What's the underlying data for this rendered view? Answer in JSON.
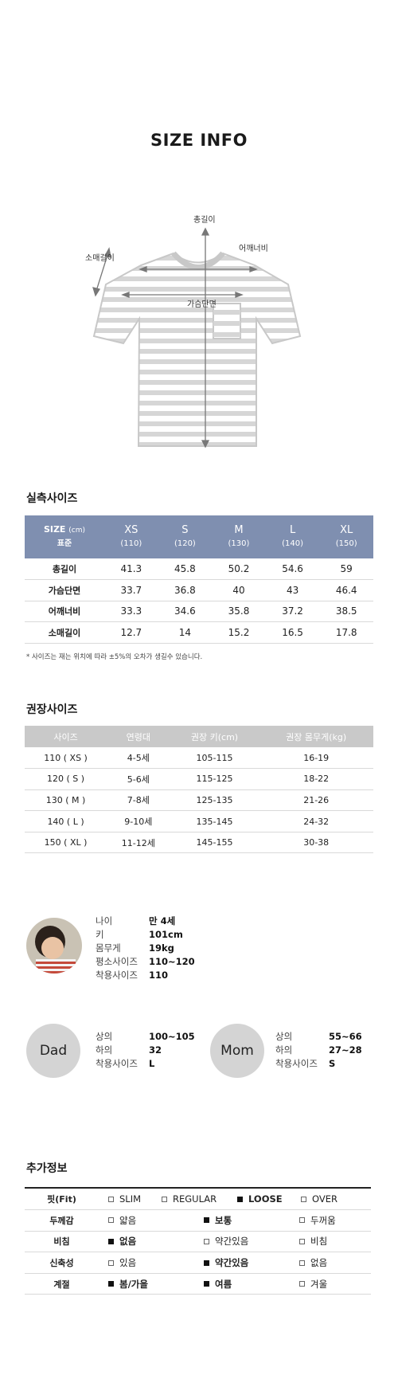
{
  "title": "SIZE INFO",
  "diagram": {
    "total_length": "총길이",
    "shoulder_width": "어깨너비",
    "sleeve_length": "소매길이",
    "chest_width": "가슴단면"
  },
  "measured": {
    "title": "실측사이즈",
    "header_label": "SIZE",
    "header_unit": "(cm)",
    "header_sub": "표준",
    "columns": [
      {
        "size": "XS",
        "sub": "(110)"
      },
      {
        "size": "S",
        "sub": "(120)"
      },
      {
        "size": "M",
        "sub": "(130)"
      },
      {
        "size": "L",
        "sub": "(140)"
      },
      {
        "size": "XL",
        "sub": "(150)"
      }
    ],
    "rows": [
      {
        "label": "총길이",
        "values": [
          "41.3",
          "45.8",
          "50.2",
          "54.6",
          "59"
        ]
      },
      {
        "label": "가슴단면",
        "values": [
          "33.7",
          "36.8",
          "40",
          "43",
          "46.4"
        ]
      },
      {
        "label": "어깨너비",
        "values": [
          "33.3",
          "34.6",
          "35.8",
          "37.2",
          "38.5"
        ]
      },
      {
        "label": "소매길이",
        "values": [
          "12.7",
          "14",
          "15.2",
          "16.5",
          "17.8"
        ]
      }
    ],
    "note": "* 사이즈는 재는 위치에 따라 ±5%의 오차가 생길수 있습니다."
  },
  "recommended": {
    "title": "권장사이즈",
    "headers": [
      "사이즈",
      "연령대",
      "권장 키(cm)",
      "권장 몸무게(kg)"
    ],
    "rows": [
      [
        "110 ( XS )",
        "4-5세",
        "105-115",
        "16-19"
      ],
      [
        "120 ( S )",
        "5-6세",
        "115-125",
        "18-22"
      ],
      [
        "130 ( M )",
        "7-8세",
        "125-135",
        "21-26"
      ],
      [
        "140 ( L )",
        "9-10세",
        "135-145",
        "24-32"
      ],
      [
        "150 ( XL )",
        "11-12세",
        "145-155",
        "30-38"
      ]
    ]
  },
  "child_model": {
    "rows": [
      {
        "label": "나이",
        "value": "만 4세"
      },
      {
        "label": "키",
        "value": "101cm"
      },
      {
        "label": "몸무게",
        "value": "19kg"
      },
      {
        "label": "평소사이즈",
        "value": "110~120"
      },
      {
        "label": "착용사이즈",
        "value": "110"
      }
    ]
  },
  "dad": {
    "name": "Dad",
    "rows": [
      {
        "label": "상의",
        "value": "100~105"
      },
      {
        "label": "하의",
        "value": "32"
      },
      {
        "label": "착용사이즈",
        "value": "L"
      }
    ]
  },
  "mom": {
    "name": "Mom",
    "rows": [
      {
        "label": "상의",
        "value": "55~66"
      },
      {
        "label": "하의",
        "value": "27~28"
      },
      {
        "label": "착용사이즈",
        "value": "S"
      }
    ]
  },
  "additional": {
    "title": "추가정보",
    "rows": [
      {
        "label": "핏(Fit)",
        "options": [
          {
            "text": "SLIM",
            "checked": false
          },
          {
            "text": "REGULAR",
            "checked": false
          },
          {
            "text": "LOOSE",
            "checked": true
          },
          {
            "text": "OVER",
            "checked": false
          }
        ]
      },
      {
        "label": "두께감",
        "options": [
          {
            "text": "얇음",
            "checked": false
          },
          {
            "text": "보통",
            "checked": true
          },
          {
            "text": "두꺼움",
            "checked": false
          }
        ]
      },
      {
        "label": "비침",
        "options": [
          {
            "text": "없음",
            "checked": true
          },
          {
            "text": "약간있음",
            "checked": false
          },
          {
            "text": "비침",
            "checked": false
          }
        ]
      },
      {
        "label": "신축성",
        "options": [
          {
            "text": "있음",
            "checked": false
          },
          {
            "text": "약간있음",
            "checked": true
          },
          {
            "text": "없음",
            "checked": false
          }
        ]
      },
      {
        "label": "계절",
        "options": [
          {
            "text": "봄/가을",
            "checked": true
          },
          {
            "text": "여름",
            "checked": true
          },
          {
            "text": "겨울",
            "checked": false
          }
        ]
      }
    ]
  }
}
